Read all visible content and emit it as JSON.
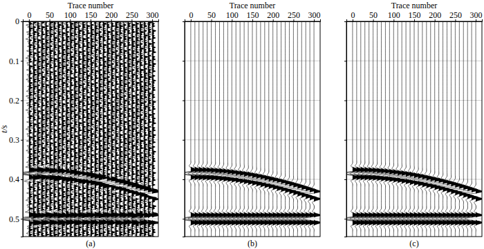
{
  "chart_data": [
    {
      "type": "wiggle",
      "title": "(a)",
      "x_label": "Trace number",
      "y_label": "t/s",
      "x": [
        0,
        10,
        20,
        30,
        40,
        50,
        60,
        70,
        80,
        90,
        100,
        110,
        120,
        130,
        140,
        150,
        160,
        170,
        180,
        190,
        200,
        210,
        220,
        230,
        240,
        250,
        260,
        270,
        280,
        290,
        300
      ],
      "series": [
        {
          "values": [
            0.375,
            0.3751,
            0.3753,
            0.3756,
            0.3761,
            0.3766,
            0.3774,
            0.3782,
            0.3792,
            0.3803,
            0.3815,
            0.3829,
            0.3843,
            0.3859,
            0.3876,
            0.3895,
            0.3914,
            0.3935,
            0.3957,
            0.398,
            0.4004,
            0.4029,
            0.4055,
            0.4082,
            0.4111,
            0.414,
            0.417,
            0.4201,
            0.4233,
            0.4266,
            0.43
          ]
        },
        {
          "values": [
            0.49,
            0.49,
            0.49,
            0.49,
            0.49,
            0.49,
            0.49,
            0.49,
            0.49,
            0.49,
            0.49,
            0.49,
            0.49,
            0.49,
            0.49,
            0.49,
            0.49,
            0.49,
            0.49,
            0.49,
            0.49,
            0.49,
            0.49,
            0.49,
            0.49,
            0.49,
            0.49,
            0.49,
            0.49,
            0.49,
            0.49
          ]
        }
      ],
      "noise": [
        0.6,
        -0.4,
        0.7,
        -0.8,
        0.3,
        -0.5,
        0.8,
        -0.2,
        0.5,
        -0.7,
        0.4,
        -0.6,
        0.7,
        -0.3,
        0.2,
        -0.8,
        0.6,
        -0.5,
        0.3,
        -0.4,
        0.8,
        -0.6,
        0.5,
        -0.2,
        0.4,
        -0.7,
        0.6,
        -0.3,
        0.7,
        -0.5,
        0.3,
        -0.8,
        0.5,
        -0.4,
        0.6,
        -0.6,
        0.2,
        -0.5,
        0.8,
        -0.3,
        0.4,
        -0.7,
        0.5,
        -0.2,
        0.7,
        -0.6,
        0.3,
        -0.4,
        0.6,
        -0.8,
        0.4,
        -0.5,
        0.7,
        -0.3,
        0.5,
        -0.6,
        0.8,
        -0.4,
        0.3,
        -0.7
      ],
      "xlim": [
        -15,
        315
      ],
      "ylim": [
        0,
        0.545
      ],
      "xticks": [
        0,
        50,
        100,
        150,
        200,
        250,
        300
      ],
      "yticks": [
        0,
        0.1,
        0.2,
        0.3,
        0.4,
        0.5
      ],
      "grid": true
    },
    {
      "type": "wiggle",
      "title": "(b)",
      "x_label": "Trace number",
      "x": [
        0,
        10,
        20,
        30,
        40,
        50,
        60,
        70,
        80,
        90,
        100,
        110,
        120,
        130,
        140,
        150,
        160,
        170,
        180,
        190,
        200,
        210,
        220,
        230,
        240,
        250,
        260,
        270,
        280,
        290,
        300
      ],
      "series": [
        {
          "values": [
            0.375,
            0.3751,
            0.3753,
            0.3756,
            0.3761,
            0.3766,
            0.3774,
            0.3782,
            0.3792,
            0.3803,
            0.3815,
            0.3829,
            0.3843,
            0.3859,
            0.3876,
            0.3895,
            0.3914,
            0.3935,
            0.3957,
            0.398,
            0.4004,
            0.4029,
            0.4055,
            0.4082,
            0.4111,
            0.414,
            0.417,
            0.4201,
            0.4233,
            0.4266,
            0.43
          ]
        },
        {
          "values": [
            0.49,
            0.49,
            0.49,
            0.49,
            0.49,
            0.49,
            0.49,
            0.49,
            0.49,
            0.49,
            0.49,
            0.49,
            0.49,
            0.49,
            0.49,
            0.49,
            0.49,
            0.49,
            0.49,
            0.49,
            0.49,
            0.49,
            0.49,
            0.49,
            0.49,
            0.49,
            0.49,
            0.49,
            0.49,
            0.49,
            0.49
          ]
        }
      ],
      "xlim": [
        -15,
        315
      ],
      "ylim": [
        0,
        0.545
      ],
      "xticks": [
        0,
        50,
        100,
        150,
        200,
        250,
        300
      ],
      "yticks": [
        0,
        0.1,
        0.2,
        0.3,
        0.4,
        0.5
      ],
      "grid": true,
      "tick_labels": "x"
    },
    {
      "type": "wiggle",
      "title": "(c)",
      "x_label": "Trace number",
      "x": [
        0,
        10,
        20,
        30,
        40,
        50,
        60,
        70,
        80,
        90,
        100,
        110,
        120,
        130,
        140,
        150,
        160,
        170,
        180,
        190,
        200,
        210,
        220,
        230,
        240,
        250,
        260,
        270,
        280,
        290,
        300
      ],
      "series": [
        {
          "values": [
            0.375,
            0.3751,
            0.3753,
            0.3756,
            0.3761,
            0.3766,
            0.3774,
            0.3782,
            0.3792,
            0.3803,
            0.3815,
            0.3829,
            0.3843,
            0.3859,
            0.3876,
            0.3895,
            0.3914,
            0.3935,
            0.3957,
            0.398,
            0.4004,
            0.4029,
            0.4055,
            0.4082,
            0.4111,
            0.414,
            0.417,
            0.4201,
            0.4233,
            0.4266,
            0.43
          ]
        },
        {
          "values": [
            0.49,
            0.49,
            0.49,
            0.49,
            0.49,
            0.49,
            0.49,
            0.49,
            0.49,
            0.49,
            0.49,
            0.49,
            0.49,
            0.49,
            0.49,
            0.49,
            0.49,
            0.49,
            0.49,
            0.49,
            0.49,
            0.49,
            0.49,
            0.49,
            0.49,
            0.49,
            0.49,
            0.49,
            0.49,
            0.49,
            0.49
          ]
        }
      ],
      "xlim": [
        -15,
        315
      ],
      "ylim": [
        0,
        0.545
      ],
      "xticks": [
        0,
        50,
        100,
        150,
        200,
        250,
        300
      ],
      "yticks": [
        0,
        0.1,
        0.2,
        0.3,
        0.4,
        0.5
      ],
      "grid": true,
      "tick_labels": "x"
    }
  ]
}
